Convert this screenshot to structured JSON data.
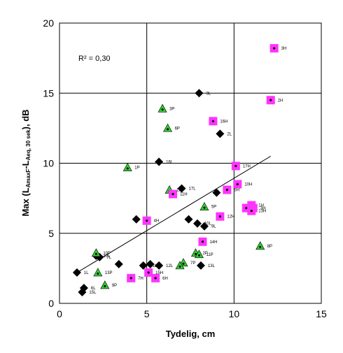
{
  "chart_data": {
    "type": "scatter",
    "xlabel": "Tydelig, cm",
    "ylabel": "Max (L_AmaxF-L_Aeq, 30 sek), dB",
    "ylabel_parts": {
      "main": "Max (L",
      "sub1": "AmaxF",
      "mid": "-L",
      "sub2": "Aeq, 30 sek",
      "end": "), dB"
    },
    "xlim": [
      0,
      15
    ],
    "ylim": [
      0,
      20
    ],
    "x_ticks": [
      0,
      5,
      10,
      15
    ],
    "y_ticks": [
      0,
      5,
      10,
      15,
      20
    ],
    "grid": true,
    "annotation": "R² = 0,30",
    "trendline": {
      "x": [
        1,
        12.1
      ],
      "y": [
        2.2,
        10.5
      ]
    },
    "series": [
      {
        "marker": "diamond",
        "color": "#000000",
        "points": [
          {
            "x": 8.0,
            "y": 15.0,
            "label": "3L"
          },
          {
            "x": 9.2,
            "y": 12.1,
            "label": "2L"
          },
          {
            "x": 5.7,
            "y": 10.1,
            "label": "16L"
          },
          {
            "x": 7.0,
            "y": 8.2,
            "label": "17L"
          },
          {
            "x": 9.0,
            "y": 7.9,
            "label": ""
          },
          {
            "x": 4.4,
            "y": 6.0,
            "label": ""
          },
          {
            "x": 7.4,
            "y": 6.0,
            "label": ""
          },
          {
            "x": 7.9,
            "y": 5.7,
            "label": "10L"
          },
          {
            "x": 8.3,
            "y": 5.5,
            "label": "9L"
          },
          {
            "x": 2.1,
            "y": 3.4,
            "label": "10L"
          },
          {
            "x": 2.3,
            "y": 3.3,
            "label": "7L"
          },
          {
            "x": 3.4,
            "y": 2.8,
            "label": ""
          },
          {
            "x": 4.8,
            "y": 2.7,
            "label": "11L"
          },
          {
            "x": 5.2,
            "y": 2.8,
            "label": ""
          },
          {
            "x": 5.7,
            "y": 2.7,
            "label": "12L"
          },
          {
            "x": 8.1,
            "y": 2.7,
            "label": "13L"
          },
          {
            "x": 1.0,
            "y": 2.2,
            "label": "1L"
          },
          {
            "x": 1.4,
            "y": 1.1,
            "label": "6L"
          },
          {
            "x": 1.3,
            "y": 0.8,
            "label": "15L"
          }
        ]
      },
      {
        "marker": "triangle",
        "color": "#33cc33",
        "points": [
          {
            "x": 5.9,
            "y": 13.9,
            "label": "3P"
          },
          {
            "x": 6.2,
            "y": 12.5,
            "label": "6P"
          },
          {
            "x": 3.9,
            "y": 9.7,
            "label": "1P"
          },
          {
            "x": 6.3,
            "y": 8.1,
            "label": "12P"
          },
          {
            "x": 8.3,
            "y": 6.9,
            "label": "5P"
          },
          {
            "x": 11.5,
            "y": 4.1,
            "label": "8P"
          },
          {
            "x": 2.1,
            "y": 3.6,
            "label": "10P"
          },
          {
            "x": 7.8,
            "y": 3.6,
            "label": "2P"
          },
          {
            "x": 8.0,
            "y": 3.5,
            "label": "11P"
          },
          {
            "x": 7.1,
            "y": 2.9,
            "label": "7P"
          },
          {
            "x": 6.9,
            "y": 2.7,
            "label": ""
          },
          {
            "x": 2.2,
            "y": 2.2,
            "label": "13P"
          },
          {
            "x": 2.6,
            "y": 1.3,
            "label": "9P"
          }
        ]
      },
      {
        "marker": "square",
        "color": "#ff33ff",
        "points": [
          {
            "x": 12.3,
            "y": 18.2,
            "label": "3H"
          },
          {
            "x": 12.1,
            "y": 14.5,
            "label": "2H"
          },
          {
            "x": 8.8,
            "y": 13.0,
            "label": "16H"
          },
          {
            "x": 10.1,
            "y": 9.8,
            "label": "17H"
          },
          {
            "x": 10.2,
            "y": 8.5,
            "label": "10H"
          },
          {
            "x": 9.6,
            "y": 8.1,
            "label": "5H"
          },
          {
            "x": 6.5,
            "y": 7.8,
            "label": "11H"
          },
          {
            "x": 11.0,
            "y": 7.0,
            "label": "1H"
          },
          {
            "x": 11.1,
            "y": 6.8,
            "label": "3H"
          },
          {
            "x": 10.7,
            "y": 6.8,
            "label": ""
          },
          {
            "x": 11.0,
            "y": 6.6,
            "label": "13H"
          },
          {
            "x": 9.2,
            "y": 6.2,
            "label": "12H"
          },
          {
            "x": 5.0,
            "y": 5.9,
            "label": "4H"
          },
          {
            "x": 8.2,
            "y": 4.4,
            "label": "14H"
          },
          {
            "x": 5.1,
            "y": 2.2,
            "label": "15H"
          },
          {
            "x": 5.5,
            "y": 1.8,
            "label": "6H"
          },
          {
            "x": 4.1,
            "y": 1.8,
            "label": "7H"
          }
        ]
      }
    ]
  }
}
